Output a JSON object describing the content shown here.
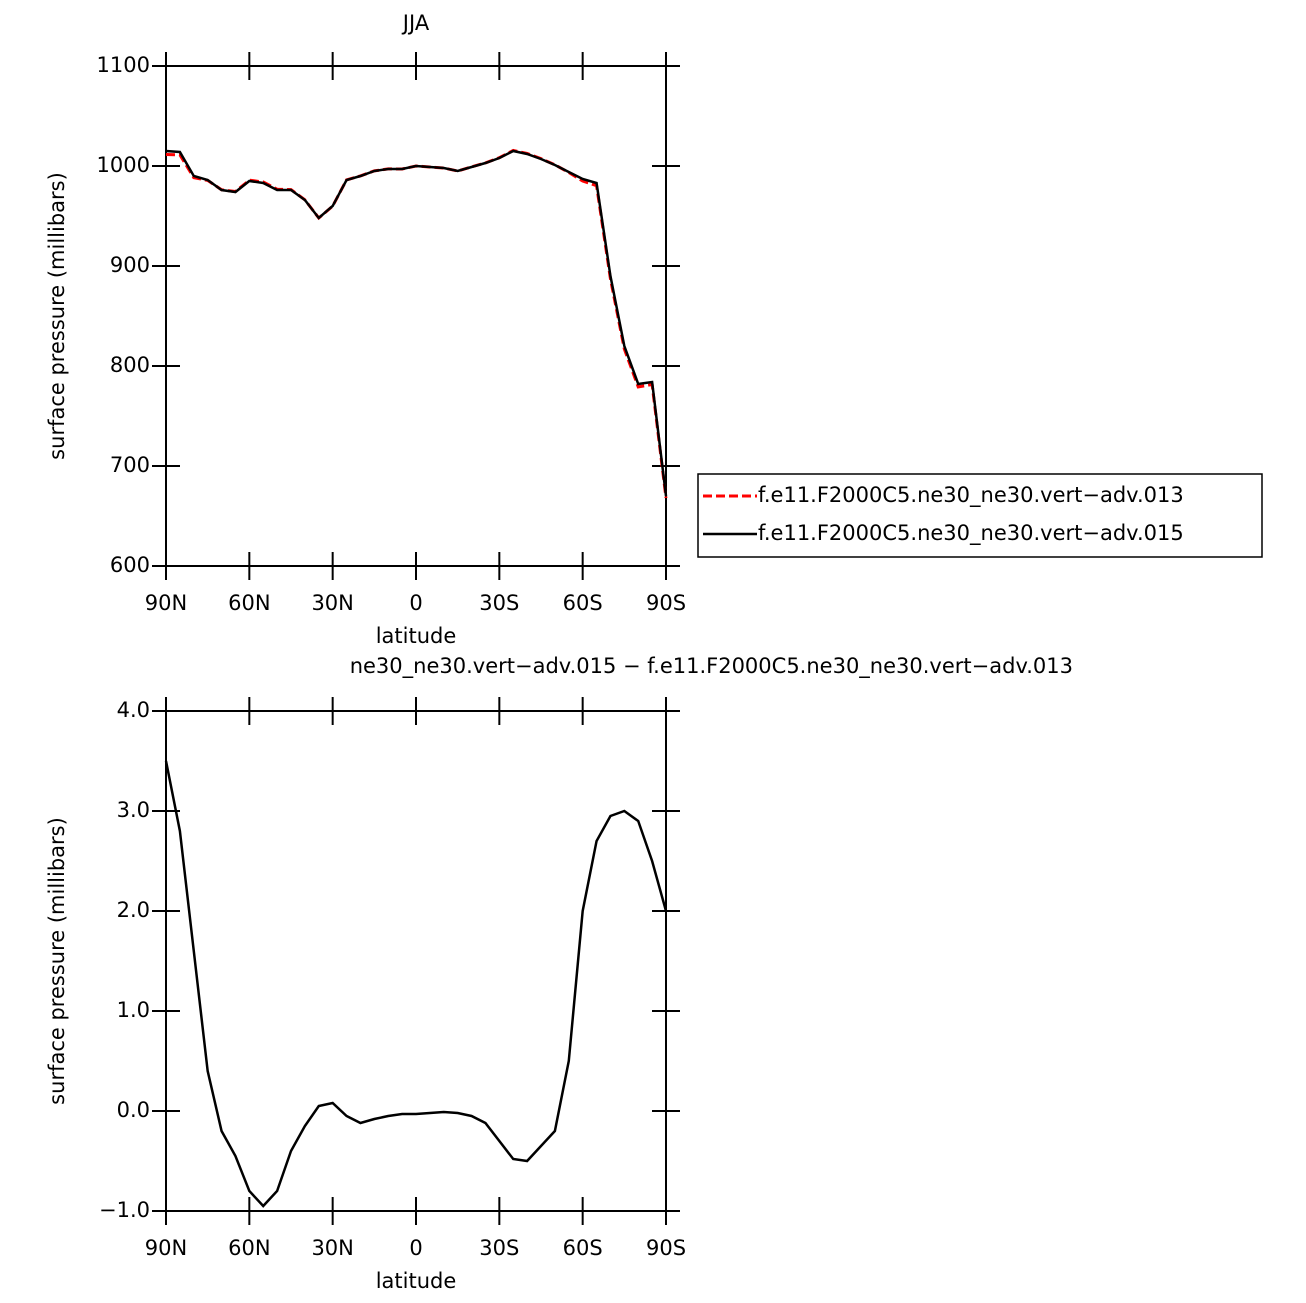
{
  "chart_data": [
    {
      "type": "line",
      "title": "JJA",
      "xlabel": "latitude",
      "ylabel": "surface pressure (millibars)",
      "xlim": [
        90,
        -90
      ],
      "ylim": [
        600,
        1100
      ],
      "xticks": [
        {
          "value": 90,
          "label": "90N"
        },
        {
          "value": 60,
          "label": "60N"
        },
        {
          "value": 30,
          "label": "30N"
        },
        0,
        {
          "value": -30,
          "label": "30S"
        },
        {
          "value": -60,
          "label": "60S"
        },
        {
          "value": -90,
          "label": "90S"
        }
      ],
      "yticks": [
        600,
        700,
        800,
        900,
        1000,
        1100
      ],
      "x": [
        90,
        85,
        80,
        75,
        70,
        65,
        60,
        55,
        50,
        45,
        40,
        35,
        30,
        25,
        20,
        15,
        10,
        5,
        0,
        -5,
        -10,
        -15,
        -20,
        -25,
        -30,
        -35,
        -40,
        -45,
        -50,
        -55,
        -60,
        -65,
        -70,
        -75,
        -80,
        -85,
        -90
      ],
      "series": [
        {
          "name": "f.e11.F2000C5.ne30_ne30.vert−adv.013",
          "color": "#ff0000",
          "dashed": true,
          "values": [
            1011.5,
            1011.2,
            988.4,
            985.6,
            976.2,
            974.5,
            985.8,
            984.0,
            976.8,
            976.4,
            966.2,
            948.0,
            959.9,
            986.1,
            990.1,
            995.1,
            997.1,
            997.0,
            1000.0,
            999.0,
            998.0,
            995.0,
            999.1,
            1003.1,
            1008.3,
            1015.5,
            1012.5,
            1007.4,
            1001.2,
            993.5,
            985.0,
            980.3,
            887.1,
            817.0,
            779.1,
            781.5,
            668.0
          ]
        },
        {
          "name": "f.e11.F2000C5.ne30_ne30.vert−adv.015",
          "color": "#000000",
          "dashed": false,
          "values": [
            1015,
            1014,
            990,
            986,
            976,
            974,
            985,
            983,
            976,
            976,
            966,
            948,
            960,
            986,
            990,
            995,
            997,
            997,
            1000,
            999,
            998,
            995,
            999,
            1003,
            1008,
            1015,
            1012,
            1007,
            1001,
            994,
            987,
            983,
            890,
            820,
            782,
            784,
            670
          ]
        }
      ]
    },
    {
      "type": "line",
      "title": "ne30_ne30.vert−adv.015 − f.e11.F2000C5.ne30_ne30.vert−adv.013",
      "xlabel": "latitude",
      "ylabel": "surface pressure (millibars)",
      "xlim": [
        90,
        -90
      ],
      "ylim": [
        -1,
        4
      ],
      "xticks": [
        {
          "value": 90,
          "label": "90N"
        },
        {
          "value": 60,
          "label": "60N"
        },
        {
          "value": 30,
          "label": "30N"
        },
        0,
        {
          "value": -30,
          "label": "30S"
        },
        {
          "value": -60,
          "label": "60S"
        },
        {
          "value": -90,
          "label": "90S"
        }
      ],
      "yticks": [
        {
          "value": -1,
          "label": "−1.0"
        },
        {
          "value": 0,
          "label": "0.0"
        },
        {
          "value": 1,
          "label": "1.0"
        },
        {
          "value": 2,
          "label": "2.0"
        },
        {
          "value": 3,
          "label": "3.0"
        },
        {
          "value": 4,
          "label": "4.0"
        }
      ],
      "x": [
        90,
        85,
        80,
        75,
        70,
        65,
        60,
        55,
        50,
        45,
        40,
        35,
        30,
        25,
        20,
        15,
        10,
        5,
        0,
        -5,
        -10,
        -15,
        -20,
        -25,
        -30,
        -35,
        -40,
        -45,
        -50,
        -55,
        -60,
        -65,
        -70,
        -75,
        -80,
        -85,
        -90
      ],
      "series": [
        {
          "color": "#000000",
          "dashed": false,
          "values": [
            3.5,
            2.8,
            1.6,
            0.4,
            -0.2,
            -0.45,
            -0.8,
            -0.95,
            -0.8,
            -0.4,
            -0.15,
            0.05,
            0.08,
            -0.05,
            -0.12,
            -0.08,
            -0.05,
            -0.03,
            -0.03,
            -0.02,
            -0.01,
            -0.02,
            -0.05,
            -0.12,
            -0.3,
            -0.48,
            -0.5,
            -0.35,
            -0.2,
            0.5,
            2.0,
            2.7,
            2.95,
            3.0,
            2.9,
            2.5,
            2.0
          ]
        }
      ]
    }
  ]
}
